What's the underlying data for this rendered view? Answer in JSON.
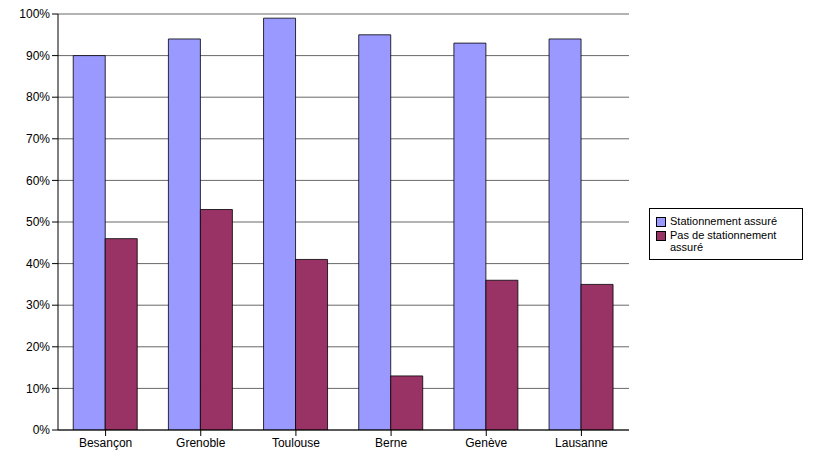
{
  "chart_data": {
    "type": "bar",
    "categories": [
      "Besançon",
      "Grenoble",
      "Toulouse",
      "Berne",
      "Genève",
      "Lausanne"
    ],
    "series": [
      {
        "name": "Stationnement assuré",
        "color": "#9999ff",
        "values": [
          90,
          94,
          99,
          95,
          93,
          94
        ]
      },
      {
        "name": "Pas de stationnement assuré",
        "color": "#993366",
        "values": [
          46,
          53,
          41,
          13,
          36,
          35
        ]
      }
    ],
    "ylim": [
      0,
      100
    ],
    "yticks": [
      {
        "value": 0,
        "label": "0%"
      },
      {
        "value": 10,
        "label": "10%"
      },
      {
        "value": 20,
        "label": "20%"
      },
      {
        "value": 30,
        "label": "30%"
      },
      {
        "value": 40,
        "label": "40%"
      },
      {
        "value": 50,
        "label": "50%"
      },
      {
        "value": 60,
        "label": "60%"
      },
      {
        "value": 70,
        "label": "70%"
      },
      {
        "value": 80,
        "label": "80%"
      },
      {
        "value": 90,
        "label": "90%"
      },
      {
        "value": 100,
        "label": "100%"
      }
    ],
    "grid": true,
    "legend": "right"
  }
}
